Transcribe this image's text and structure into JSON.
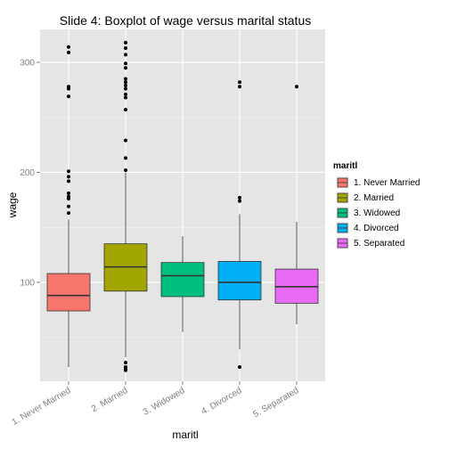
{
  "chart_data": {
    "type": "boxplot",
    "title": "Slide 4: Boxplot of wage versus marital status",
    "xlabel": "maritl",
    "ylabel": "wage",
    "ylim": [
      10,
      330
    ],
    "yticks": [
      100,
      200,
      300
    ],
    "grid": true,
    "legend": {
      "title": "maritl",
      "position": "right"
    },
    "categories": [
      "1. Never Married",
      "2. Married",
      "3. Widowed",
      "4. Divorced",
      "5. Separated"
    ],
    "colors": [
      "#F8766D",
      "#A3A500",
      "#00BF7D",
      "#00B0F6",
      "#E76BF3"
    ],
    "boxes": [
      {
        "category": "1. Never Married",
        "whisker_low": 23,
        "q1": 74,
        "median": 88,
        "q3": 108,
        "whisker_high": 157,
        "outliers": [
          314,
          309,
          278,
          276,
          269,
          201,
          196,
          192,
          181,
          178,
          176,
          169,
          163
        ]
      },
      {
        "category": "2. Married",
        "whisker_low": 32,
        "q1": 92,
        "median": 114,
        "q3": 135,
        "whisker_high": 200,
        "outliers": [
          318,
          313,
          307,
          299,
          295,
          285,
          282,
          279,
          276,
          271,
          268,
          257,
          229,
          213,
          202,
          27,
          23,
          21,
          20
        ]
      },
      {
        "category": "3. Widowed",
        "whisker_low": 55,
        "q1": 87,
        "median": 106,
        "q3": 118,
        "whisker_high": 142,
        "outliers": []
      },
      {
        "category": "4. Divorced",
        "whisker_low": 39,
        "q1": 84,
        "median": 100,
        "q3": 119,
        "whisker_high": 162,
        "outliers": [
          282,
          278,
          177,
          174,
          23
        ]
      },
      {
        "category": "5. Separated",
        "whisker_low": 62,
        "q1": 81,
        "median": 96,
        "q3": 112,
        "whisker_high": 155,
        "outliers": [
          278
        ]
      }
    ]
  }
}
